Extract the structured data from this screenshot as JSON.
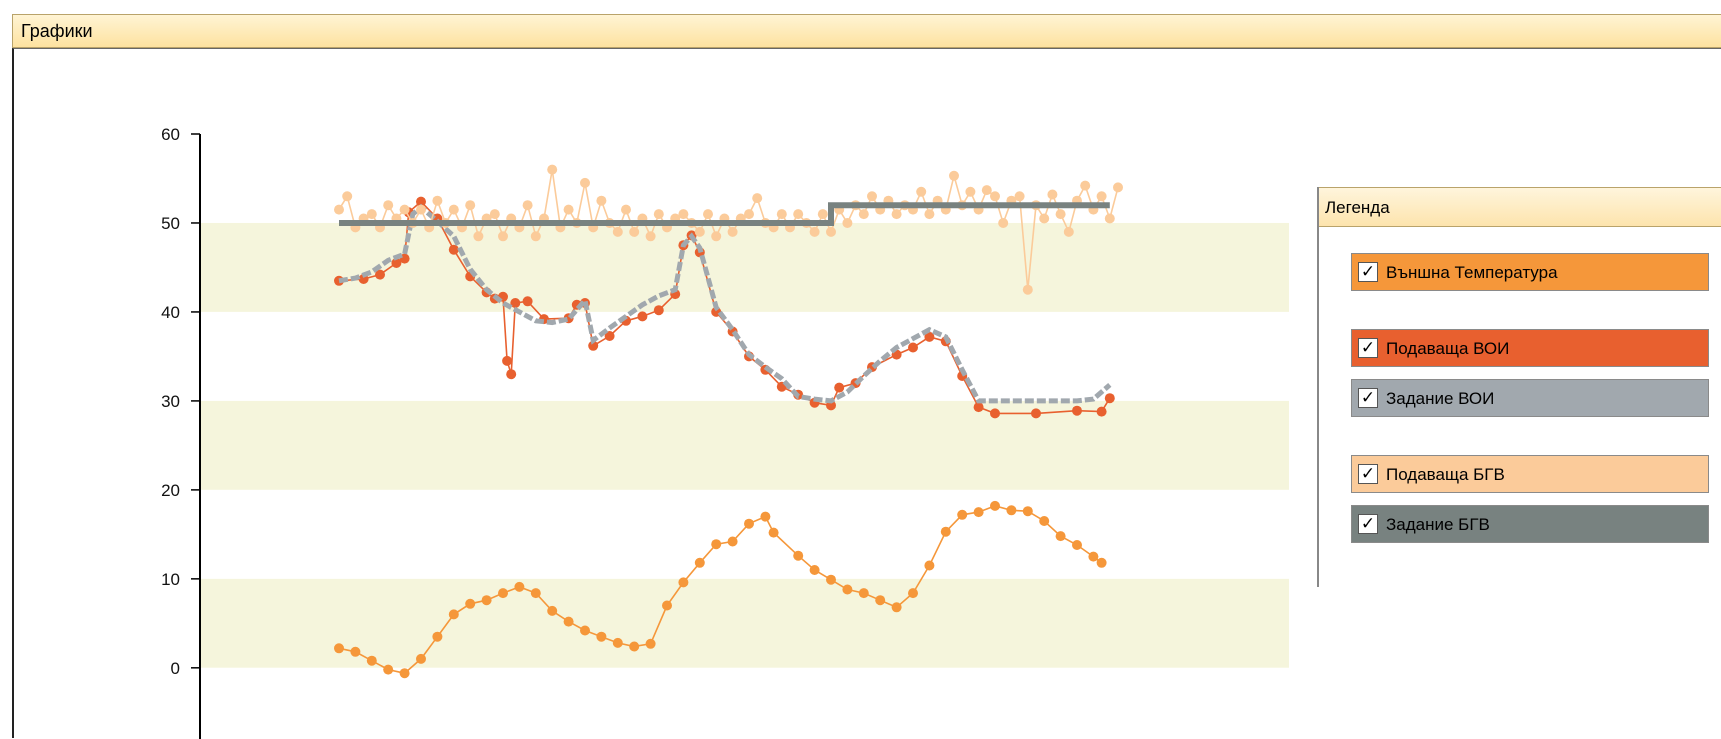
{
  "window": {
    "title": "Графики"
  },
  "legend": {
    "title": "Легенда",
    "items": [
      {
        "label": "Външна Температура",
        "color": "#f5973a",
        "checked": true
      },
      {
        "label": "Подаваща ВОИ",
        "color": "#e8602f",
        "checked": true
      },
      {
        "label": "Задание ВОИ",
        "color": "#a1a8ae",
        "checked": true
      },
      {
        "label": "Подаваща БГВ",
        "color": "#fbcb9a",
        "checked": true
      },
      {
        "label": "Задание БГВ",
        "color": "#788280",
        "checked": true
      }
    ],
    "check_mark": "✓"
  },
  "chart_data": {
    "type": "line",
    "ylim": [
      -8,
      60
    ],
    "yticks": [
      0,
      10,
      20,
      30,
      40,
      50,
      60
    ],
    "ytick_labels": [
      "0",
      "10",
      "20",
      "30",
      "40",
      "50",
      "60"
    ],
    "band_colors": [
      "#f5f5dc",
      "#ffffff"
    ],
    "x_range": [
      0,
      100
    ],
    "series": [
      {
        "name": "Външна Температура",
        "color": "#f5973a",
        "points": [
          [
            0,
            2.2
          ],
          [
            2,
            1.8
          ],
          [
            4,
            0.8
          ],
          [
            6,
            -0.2
          ],
          [
            8,
            -0.6
          ],
          [
            10,
            1
          ],
          [
            12,
            3.5
          ],
          [
            14,
            6
          ],
          [
            16,
            7.2
          ],
          [
            18,
            7.6
          ],
          [
            20,
            8.4
          ],
          [
            22,
            9.1
          ],
          [
            24,
            8.4
          ],
          [
            26,
            6.4
          ],
          [
            28,
            5.2
          ],
          [
            30,
            4.2
          ],
          [
            32,
            3.5
          ],
          [
            34,
            2.8
          ],
          [
            36,
            2.4
          ],
          [
            38,
            2.7
          ],
          [
            40,
            7
          ],
          [
            42,
            9.6
          ],
          [
            44,
            11.8
          ],
          [
            46,
            13.9
          ],
          [
            48,
            14.2
          ],
          [
            50,
            16.2
          ],
          [
            52,
            17
          ],
          [
            53,
            15.2
          ],
          [
            56,
            12.6
          ],
          [
            58,
            11
          ],
          [
            60,
            9.9
          ],
          [
            62,
            8.8
          ],
          [
            64,
            8.4
          ],
          [
            66,
            7.6
          ],
          [
            68,
            6.8
          ],
          [
            70,
            8.4
          ],
          [
            72,
            11.5
          ],
          [
            74,
            15.3
          ],
          [
            76,
            17.2
          ],
          [
            78,
            17.5
          ],
          [
            80,
            18.2
          ],
          [
            82,
            17.7
          ],
          [
            84,
            17.6
          ],
          [
            86,
            16.5
          ],
          [
            88,
            14.8
          ],
          [
            90,
            13.8
          ],
          [
            92,
            12.5
          ],
          [
            93,
            11.8
          ]
        ]
      },
      {
        "name": "Подаваща ВОИ",
        "color": "#e8602f",
        "points": [
          [
            0,
            43.5
          ],
          [
            3,
            43.7
          ],
          [
            5,
            44.2
          ],
          [
            7,
            45.5
          ],
          [
            8,
            46
          ],
          [
            8.5,
            51.2
          ],
          [
            10,
            52.4
          ],
          [
            12,
            50.5
          ],
          [
            14,
            47
          ],
          [
            16,
            44
          ],
          [
            18,
            42.2
          ],
          [
            19,
            41.5
          ],
          [
            20,
            41.7
          ],
          [
            20.5,
            34.5
          ],
          [
            21,
            33
          ],
          [
            21.5,
            41
          ],
          [
            23,
            41.2
          ],
          [
            25,
            39.2
          ],
          [
            28,
            39.3
          ],
          [
            29,
            40.8
          ],
          [
            30,
            41
          ],
          [
            31,
            36.2
          ],
          [
            33,
            37.3
          ],
          [
            35,
            39
          ],
          [
            37,
            39.5
          ],
          [
            39,
            40.2
          ],
          [
            41,
            42
          ],
          [
            42,
            47.5
          ],
          [
            43,
            48.6
          ],
          [
            44,
            46.7
          ],
          [
            46,
            40
          ],
          [
            48,
            37.8
          ],
          [
            50,
            35
          ],
          [
            52,
            33.5
          ],
          [
            54,
            31.6
          ],
          [
            56,
            30.7
          ],
          [
            58,
            29.8
          ],
          [
            60,
            29.5
          ],
          [
            61,
            31.5
          ],
          [
            63,
            32
          ],
          [
            65,
            33.8
          ],
          [
            68,
            35.2
          ],
          [
            70,
            36
          ],
          [
            72,
            37.2
          ],
          [
            74,
            36.7
          ],
          [
            76,
            32.8
          ],
          [
            78,
            29.3
          ],
          [
            80,
            28.6
          ],
          [
            85,
            28.6
          ],
          [
            90,
            28.9
          ],
          [
            93,
            28.8
          ],
          [
            94,
            30.3
          ]
        ]
      },
      {
        "name": "Задание ВОИ",
        "color": "#a1a8ae",
        "points": [
          [
            0,
            43.5
          ],
          [
            2,
            43.8
          ],
          [
            4,
            44.5
          ],
          [
            6,
            45.8
          ],
          [
            8,
            46.5
          ],
          [
            9,
            51
          ],
          [
            10,
            51.8
          ],
          [
            12,
            50.2
          ],
          [
            14,
            48.5
          ],
          [
            16,
            44.8
          ],
          [
            18,
            42.5
          ],
          [
            20,
            41
          ],
          [
            22,
            40
          ],
          [
            24,
            39
          ],
          [
            26,
            38.8
          ],
          [
            28,
            39.2
          ],
          [
            30,
            41.3
          ],
          [
            31,
            36.8
          ],
          [
            33,
            38.2
          ],
          [
            35,
            39.5
          ],
          [
            37,
            40.8
          ],
          [
            39,
            41.8
          ],
          [
            41,
            42.5
          ],
          [
            42,
            47.5
          ],
          [
            43,
            48.5
          ],
          [
            44,
            47.2
          ],
          [
            46,
            40.5
          ],
          [
            48,
            38
          ],
          [
            50,
            35.2
          ],
          [
            52,
            33.8
          ],
          [
            54,
            32.5
          ],
          [
            56,
            30.5
          ],
          [
            58,
            30.2
          ],
          [
            60,
            30
          ],
          [
            62,
            31
          ],
          [
            64,
            32.8
          ],
          [
            66,
            34.5
          ],
          [
            68,
            36
          ],
          [
            70,
            37
          ],
          [
            72,
            38
          ],
          [
            74,
            37.2
          ],
          [
            76,
            33.5
          ],
          [
            78,
            30
          ],
          [
            80,
            30
          ],
          [
            85,
            30
          ],
          [
            90,
            30
          ],
          [
            92,
            30.2
          ],
          [
            94,
            31.8
          ]
        ]
      },
      {
        "name": "Подаваща БГВ",
        "color": "#fbcb9a",
        "points": [
          [
            0,
            51.5
          ],
          [
            1,
            53
          ],
          [
            2,
            49.5
          ],
          [
            3,
            50.5
          ],
          [
            4,
            51
          ],
          [
            5,
            49.5
          ],
          [
            6,
            52
          ],
          [
            7,
            50.5
          ],
          [
            8,
            51.5
          ],
          [
            9,
            50
          ],
          [
            10,
            51.5
          ],
          [
            11,
            49.5
          ],
          [
            12,
            52.5
          ],
          [
            13,
            50
          ],
          [
            14,
            51.5
          ],
          [
            15,
            49.5
          ],
          [
            16,
            52
          ],
          [
            17,
            48.5
          ],
          [
            18,
            50.5
          ],
          [
            19,
            51
          ],
          [
            20,
            48.5
          ],
          [
            21,
            50.5
          ],
          [
            22,
            49.5
          ],
          [
            23,
            52
          ],
          [
            24,
            48.5
          ],
          [
            25,
            50.5
          ],
          [
            26,
            56
          ],
          [
            27,
            49.5
          ],
          [
            28,
            51.5
          ],
          [
            29,
            50
          ],
          [
            30,
            54.5
          ],
          [
            31,
            49.5
          ],
          [
            32,
            52.5
          ],
          [
            33,
            50
          ],
          [
            34,
            49
          ],
          [
            35,
            51.5
          ],
          [
            36,
            49
          ],
          [
            37,
            50.5
          ],
          [
            38,
            48.5
          ],
          [
            39,
            51
          ],
          [
            40,
            49.5
          ],
          [
            41,
            50.5
          ],
          [
            42,
            51
          ],
          [
            43,
            50
          ],
          [
            44,
            49
          ],
          [
            45,
            51
          ],
          [
            46,
            48.5
          ],
          [
            47,
            50.5
          ],
          [
            48,
            49
          ],
          [
            49,
            50.5
          ],
          [
            50,
            51
          ],
          [
            51,
            52.8
          ],
          [
            52,
            50
          ],
          [
            53,
            49.5
          ],
          [
            54,
            51
          ],
          [
            55,
            49.5
          ],
          [
            56,
            51
          ],
          [
            57,
            50
          ],
          [
            58,
            49
          ],
          [
            59,
            51
          ],
          [
            60,
            49
          ],
          [
            61,
            51.5
          ],
          [
            62,
            50
          ],
          [
            63,
            52
          ],
          [
            64,
            51
          ],
          [
            65,
            53
          ],
          [
            66,
            51.5
          ],
          [
            67,
            52.5
          ],
          [
            68,
            51
          ],
          [
            69,
            52
          ],
          [
            70,
            51.5
          ],
          [
            71,
            53.5
          ],
          [
            72,
            51
          ],
          [
            73,
            52.5
          ],
          [
            74,
            51.5
          ],
          [
            75,
            55.3
          ],
          [
            76,
            52
          ],
          [
            77,
            53.5
          ],
          [
            78,
            51.5
          ],
          [
            79,
            53.7
          ],
          [
            80,
            53
          ],
          [
            81,
            50
          ],
          [
            82,
            52.5
          ],
          [
            83,
            53
          ],
          [
            84,
            42.5
          ],
          [
            85,
            52
          ],
          [
            86,
            50.5
          ],
          [
            87,
            53.2
          ],
          [
            88,
            51
          ],
          [
            89,
            49
          ],
          [
            90,
            52.5
          ],
          [
            91,
            54.2
          ],
          [
            92,
            51.5
          ],
          [
            93,
            53
          ],
          [
            94,
            50.5
          ],
          [
            95,
            54
          ]
        ]
      },
      {
        "name": "Задание БГВ",
        "color": "#788280",
        "points": [
          [
            0,
            50
          ],
          [
            60,
            50
          ],
          [
            60,
            52
          ],
          [
            94,
            52
          ]
        ]
      }
    ]
  }
}
